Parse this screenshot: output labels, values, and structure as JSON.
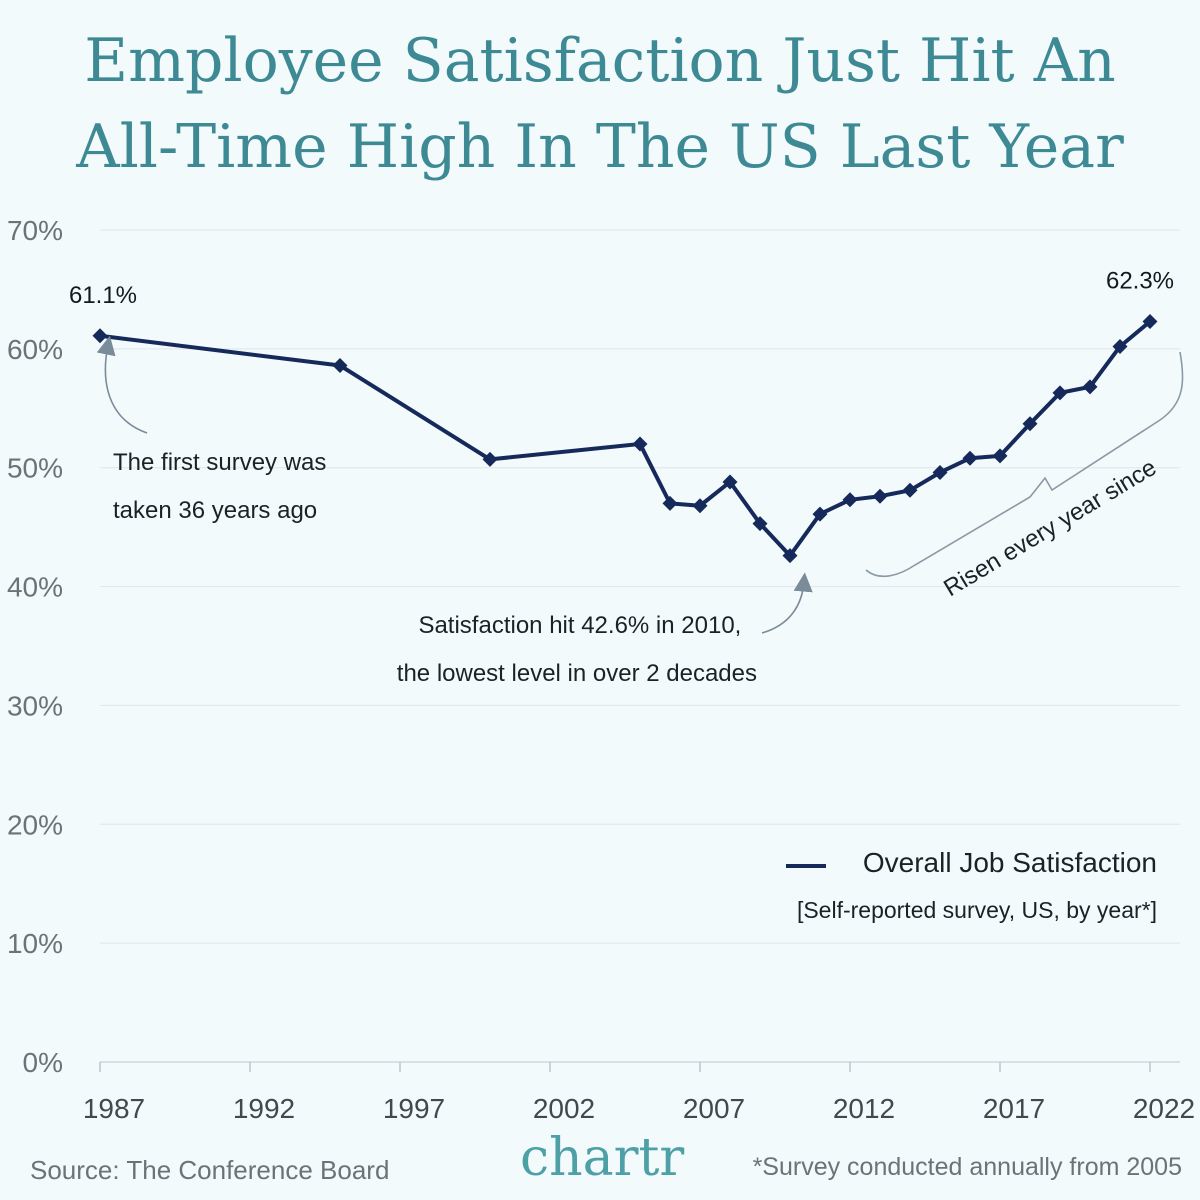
{
  "title_lines": [
    "Employee Satisfaction Just Hit An",
    "All-Time High In The US Last Year"
  ],
  "colors": {
    "background": "#f2fafc",
    "title": "#3d8a95",
    "line": "#15295a",
    "grid": "#e1e9ec",
    "arrow": "#7a8b9a",
    "brand": "#4ca0a6"
  },
  "chart_data": {
    "type": "line",
    "ylim": [
      0,
      70
    ],
    "yticks": [
      0,
      10,
      20,
      30,
      40,
      50,
      60,
      70
    ],
    "ytick_labels": [
      "0%",
      "10%",
      "20%",
      "30%",
      "40%",
      "50%",
      "60%",
      "70%"
    ],
    "xlim": [
      1987,
      2022
    ],
    "xticks": [
      1987,
      1992,
      1997,
      2002,
      2007,
      2012,
      2017,
      2022
    ],
    "xtick_labels": [
      "1987",
      "1992",
      "1997",
      "2002",
      "2007",
      "2012",
      "2017",
      "2022"
    ],
    "grid": true,
    "legend_placement": "bottom-right",
    "series": [
      {
        "name": "Overall Job Satisfaction",
        "x": [
          1987,
          1995,
          2000,
          2005,
          2006,
          2007,
          2008,
          2009,
          2010,
          2011,
          2012,
          2013,
          2014,
          2015,
          2016,
          2017,
          2018,
          2019,
          2020,
          2021,
          2022
        ],
        "values": [
          61.1,
          58.6,
          50.7,
          52.0,
          47.0,
          46.8,
          48.8,
          45.3,
          42.6,
          46.1,
          47.3,
          47.6,
          48.1,
          49.6,
          50.8,
          51.0,
          53.7,
          56.3,
          56.8,
          60.2,
          62.3
        ]
      }
    ],
    "data_labels": [
      {
        "x": 1987,
        "text": "61.1%"
      },
      {
        "x": 2022,
        "text": "62.3%"
      }
    ],
    "annotations": {
      "first_survey": [
        "The first survey was",
        "taken 36 years ago"
      ],
      "lowest": [
        "Satisfaction hit 42.6% in 2010,",
        "the lowest level in over 2 decades"
      ],
      "risen": "Risen every year since"
    },
    "legend": {
      "title": "Overall Job Satisfaction",
      "subtitle": "[Self-reported survey, US, by year*]"
    }
  },
  "footer": {
    "source": "Source: The Conference Board",
    "logo": "chartr",
    "note": "*Survey conducted annually from 2005"
  }
}
